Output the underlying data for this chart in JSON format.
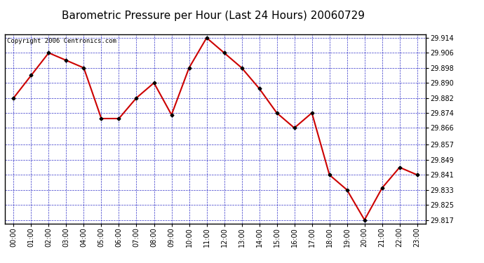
{
  "title": "Barometric Pressure per Hour (Last 24 Hours) 20060729",
  "copyright": "Copyright 2006 Centronics.com",
  "hours": [
    "00:00",
    "01:00",
    "02:00",
    "03:00",
    "04:00",
    "05:00",
    "06:00",
    "07:00",
    "08:00",
    "09:00",
    "10:00",
    "11:00",
    "12:00",
    "13:00",
    "14:00",
    "15:00",
    "16:00",
    "17:00",
    "18:00",
    "19:00",
    "20:00",
    "21:00",
    "22:00",
    "23:00"
  ],
  "values": [
    29.882,
    29.894,
    29.906,
    29.902,
    29.898,
    29.871,
    29.871,
    29.882,
    29.89,
    29.873,
    29.898,
    29.914,
    29.906,
    29.898,
    29.887,
    29.874,
    29.866,
    29.874,
    29.841,
    29.833,
    29.817,
    29.834,
    29.845,
    29.841
  ],
  "line_color": "#cc0000",
  "marker_color": "#000000",
  "bg_color": "#ffffff",
  "plot_bg_color": "#ffffff",
  "grid_color": "#0000bb",
  "title_color": "#000000",
  "axis_label_color": "#000000",
  "ymin": 29.817,
  "ymax": 29.914,
  "yticks": [
    29.914,
    29.906,
    29.898,
    29.89,
    29.882,
    29.874,
    29.866,
    29.857,
    29.849,
    29.841,
    29.833,
    29.825,
    29.817
  ],
  "title_fontsize": 11,
  "tick_fontsize": 7,
  "copyright_fontsize": 6.5
}
